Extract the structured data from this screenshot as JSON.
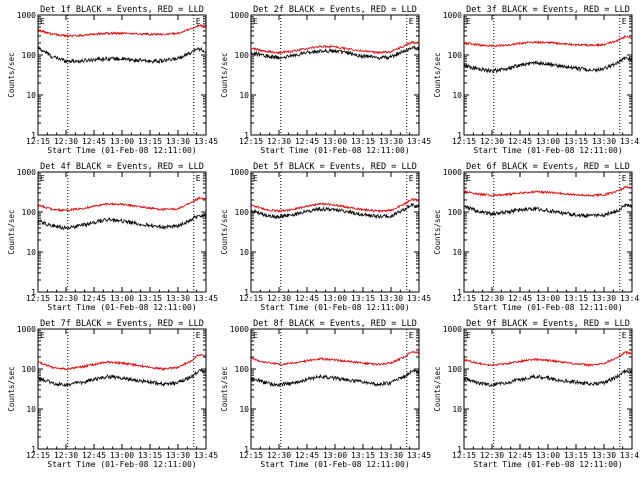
{
  "chart_data": {
    "type": "line",
    "grid": false,
    "x_tick_labels": [
      "12:15",
      "12:30",
      "12:45",
      "13:00",
      "13:15",
      "13:30",
      "13:45"
    ],
    "x_range_minutes": [
      0,
      96
    ],
    "y_scale": "log",
    "y_range": [
      1,
      1000
    ],
    "y_tick_labels": [
      "1",
      "10",
      "100",
      "1000"
    ],
    "marker_label": "E",
    "dotted_markers_minutes": [
      17,
      89
    ],
    "panels": [
      {
        "title": "Det 1f BLACK = Events, RED = LLD",
        "xlabel": "Start Time (01-Feb-08 12:11:00)",
        "ylabel": "Counts/sec",
        "series": [
          {
            "name": "Events",
            "color": "#000000",
            "x": [
              0,
              8,
              16,
              24,
              32,
              40,
              48,
              56,
              64,
              72,
              80,
              88,
              92,
              96
            ],
            "y": [
              150,
              90,
              72,
              70,
              78,
              82,
              80,
              74,
              70,
              72,
              82,
              120,
              145,
              120
            ]
          },
          {
            "name": "LLD",
            "color": "#e00000",
            "x": [
              0,
              8,
              16,
              24,
              32,
              40,
              48,
              56,
              64,
              72,
              80,
              88,
              92,
              96
            ],
            "y": [
              420,
              330,
              300,
              305,
              330,
              350,
              350,
              340,
              330,
              330,
              350,
              460,
              560,
              500
            ]
          }
        ]
      },
      {
        "title": "Det 2f BLACK = Events, RED = LLD",
        "xlabel": "Start Time (01-Feb-08 12:11:00)",
        "ylabel": "Counts/sec",
        "series": [
          {
            "name": "Events",
            "color": "#000000",
            "x": [
              0,
              8,
              16,
              24,
              32,
              40,
              48,
              56,
              64,
              72,
              80,
              88,
              92,
              96
            ],
            "y": [
              115,
              95,
              85,
              95,
              115,
              130,
              125,
              110,
              95,
              85,
              90,
              125,
              155,
              140
            ]
          },
          {
            "name": "LLD",
            "color": "#e00000",
            "x": [
              0,
              8,
              16,
              24,
              32,
              40,
              48,
              56,
              64,
              72,
              80,
              88,
              92,
              96
            ],
            "y": [
              150,
              125,
              115,
              125,
              145,
              165,
              160,
              140,
              125,
              115,
              120,
              170,
              210,
              195
            ]
          }
        ]
      },
      {
        "title": "Det 3f BLACK = Events, RED = LLD",
        "xlabel": "Start Time (01-Feb-08 12:11:00)",
        "ylabel": "Counts/sec",
        "series": [
          {
            "name": "Events",
            "color": "#000000",
            "x": [
              0,
              8,
              16,
              24,
              32,
              40,
              48,
              56,
              64,
              72,
              80,
              88,
              92,
              96
            ],
            "y": [
              55,
              45,
              40,
              45,
              55,
              65,
              60,
              52,
              47,
              42,
              45,
              65,
              85,
              80
            ]
          },
          {
            "name": "LLD",
            "color": "#e00000",
            "x": [
              0,
              8,
              16,
              24,
              32,
              40,
              48,
              56,
              64,
              72,
              80,
              88,
              92,
              96
            ],
            "y": [
              200,
              180,
              170,
              175,
              195,
              210,
              205,
              190,
              180,
              175,
              180,
              230,
              290,
              270
            ]
          }
        ]
      },
      {
        "title": "Det 4f BLACK = Events, RED = LLD",
        "xlabel": "Start Time (01-Feb-08 12:11:00)",
        "ylabel": "Counts/sec",
        "series": [
          {
            "name": "Events",
            "color": "#000000",
            "x": [
              0,
              8,
              16,
              24,
              32,
              40,
              48,
              56,
              64,
              72,
              80,
              88,
              92,
              96
            ],
            "y": [
              60,
              45,
              40,
              45,
              55,
              65,
              60,
              52,
              47,
              42,
              45,
              65,
              85,
              80
            ]
          },
          {
            "name": "LLD",
            "color": "#e00000",
            "x": [
              0,
              8,
              16,
              24,
              32,
              40,
              48,
              56,
              64,
              72,
              80,
              88,
              92,
              96
            ],
            "y": [
              150,
              115,
              110,
              120,
              140,
              160,
              155,
              140,
              125,
              115,
              120,
              170,
              220,
              210
            ]
          }
        ]
      },
      {
        "title": "Det 5f BLACK = Events, RED = LLD",
        "xlabel": "Start Time (01-Feb-08 12:11:00)",
        "ylabel": "Counts/sec",
        "series": [
          {
            "name": "Events",
            "color": "#000000",
            "x": [
              0,
              8,
              16,
              24,
              32,
              40,
              48,
              56,
              64,
              72,
              80,
              88,
              92,
              96
            ],
            "y": [
              110,
              85,
              75,
              85,
              105,
              120,
              115,
              100,
              85,
              78,
              80,
              115,
              150,
              135
            ]
          },
          {
            "name": "LLD",
            "color": "#e00000",
            "x": [
              0,
              8,
              16,
              24,
              32,
              40,
              48,
              56,
              64,
              72,
              80,
              88,
              92,
              96
            ],
            "y": [
              150,
              115,
              105,
              115,
              140,
              160,
              150,
              130,
              115,
              105,
              110,
              160,
              210,
              190
            ]
          }
        ]
      },
      {
        "title": "Det 6f BLACK = Events, RED = LLD",
        "xlabel": "Start Time (01-Feb-08 12:11:00)",
        "ylabel": "Counts/sec",
        "series": [
          {
            "name": "Events",
            "color": "#000000",
            "x": [
              0,
              8,
              16,
              24,
              32,
              40,
              48,
              56,
              64,
              72,
              80,
              88,
              92,
              96
            ],
            "y": [
              140,
              100,
              90,
              100,
              115,
              120,
              110,
              95,
              85,
              80,
              85,
              110,
              150,
              140
            ]
          },
          {
            "name": "LLD",
            "color": "#e00000",
            "x": [
              0,
              8,
              16,
              24,
              32,
              40,
              48,
              56,
              64,
              72,
              80,
              88,
              92,
              96
            ],
            "y": [
              330,
              280,
              260,
              270,
              300,
              320,
              310,
              290,
              270,
              260,
              270,
              330,
              420,
              410
            ]
          }
        ]
      },
      {
        "title": "Det 7f BLACK = Events, RED = LLD",
        "xlabel": "Start Time (01-Feb-08 12:11:00)",
        "ylabel": "Counts/sec",
        "series": [
          {
            "name": "Events",
            "color": "#000000",
            "x": [
              0,
              8,
              16,
              24,
              32,
              40,
              48,
              56,
              64,
              72,
              80,
              88,
              92,
              96
            ],
            "y": [
              60,
              45,
              40,
              45,
              55,
              65,
              60,
              52,
              47,
              42,
              45,
              65,
              90,
              85
            ]
          },
          {
            "name": "LLD",
            "color": "#e00000",
            "x": [
              0,
              8,
              16,
              24,
              32,
              40,
              48,
              56,
              64,
              72,
              80,
              88,
              92,
              96
            ],
            "y": [
              150,
              110,
              100,
              110,
              130,
              150,
              140,
              125,
              110,
              100,
              110,
              160,
              230,
              220
            ]
          }
        ]
      },
      {
        "title": "Det 8f BLACK = Events, RED = LLD",
        "xlabel": "Start Time (01-Feb-08 12:11:00)",
        "ylabel": "Counts/sec",
        "series": [
          {
            "name": "Events",
            "color": "#000000",
            "x": [
              0,
              8,
              16,
              24,
              32,
              40,
              48,
              56,
              64,
              72,
              80,
              88,
              92,
              96
            ],
            "y": [
              60,
              45,
              40,
              45,
              55,
              65,
              60,
              52,
              47,
              42,
              45,
              65,
              90,
              85
            ]
          },
          {
            "name": "LLD",
            "color": "#e00000",
            "x": [
              0,
              8,
              16,
              24,
              32,
              40,
              48,
              56,
              64,
              72,
              80,
              88,
              92,
              96
            ],
            "y": [
              180,
              150,
              130,
              140,
              160,
              180,
              170,
              155,
              140,
              130,
              140,
              200,
              270,
              260
            ]
          }
        ]
      },
      {
        "title": "Det 9f BLACK = Events, RED = LLD",
        "xlabel": "Start Time (01-Feb-08 12:11:00)",
        "ylabel": "Counts/sec",
        "series": [
          {
            "name": "Events",
            "color": "#000000",
            "x": [
              0,
              8,
              16,
              24,
              32,
              40,
              48,
              56,
              64,
              72,
              80,
              88,
              92,
              96
            ],
            "y": [
              60,
              45,
              40,
              45,
              55,
              65,
              60,
              52,
              47,
              42,
              45,
              65,
              90,
              85
            ]
          },
          {
            "name": "LLD",
            "color": "#e00000",
            "x": [
              0,
              8,
              16,
              24,
              32,
              40,
              48,
              56,
              64,
              72,
              80,
              88,
              92,
              96
            ],
            "y": [
              170,
              140,
              125,
              135,
              155,
              175,
              165,
              150,
              135,
              125,
              135,
              195,
              260,
              250
            ]
          }
        ]
      }
    ]
  }
}
